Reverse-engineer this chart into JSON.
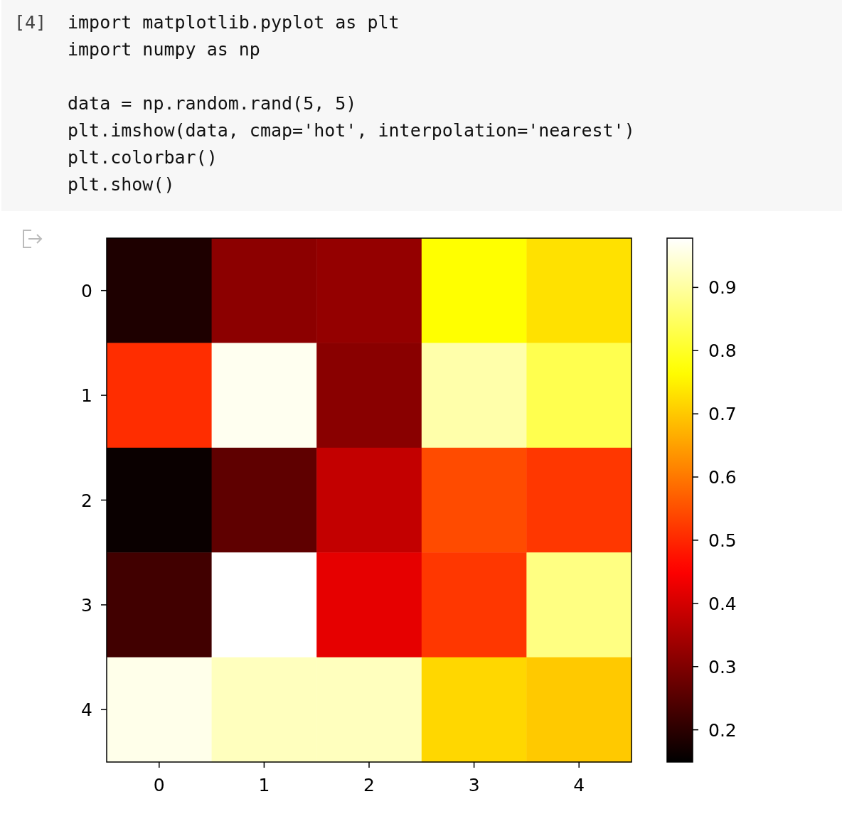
{
  "chart_data": {
    "type": "heatmap",
    "annotations": [
      "[4]",
      "import matplotlib.pyplot as plt\nimport numpy as np\n\ndata = np.random.rand(5, 5)\nplt.imshow(data, cmap='hot', interpolation='nearest')\nplt.colorbar()\nplt.show()"
    ],
    "categories": [
      "0",
      "1",
      "2",
      "3",
      "4"
    ],
    "y_categories": [
      "0",
      "1",
      "2",
      "3",
      "4"
    ],
    "cells": [
      [
        0.185,
        0.315,
        0.325,
        0.767,
        0.73
      ],
      [
        0.507,
        0.966,
        0.312,
        0.908,
        0.833
      ],
      [
        0.161,
        0.262,
        0.38,
        0.544,
        0.52
      ],
      [
        0.226,
        0.978,
        0.422,
        0.52,
        0.875
      ],
      [
        0.961,
        0.924,
        0.924,
        0.718,
        0.7
      ]
    ],
    "clim": [
      0.149,
      0.978
    ],
    "cticks": [
      0.2,
      0.3,
      0.4,
      0.5,
      0.6,
      0.7,
      0.8,
      0.9
    ]
  }
}
